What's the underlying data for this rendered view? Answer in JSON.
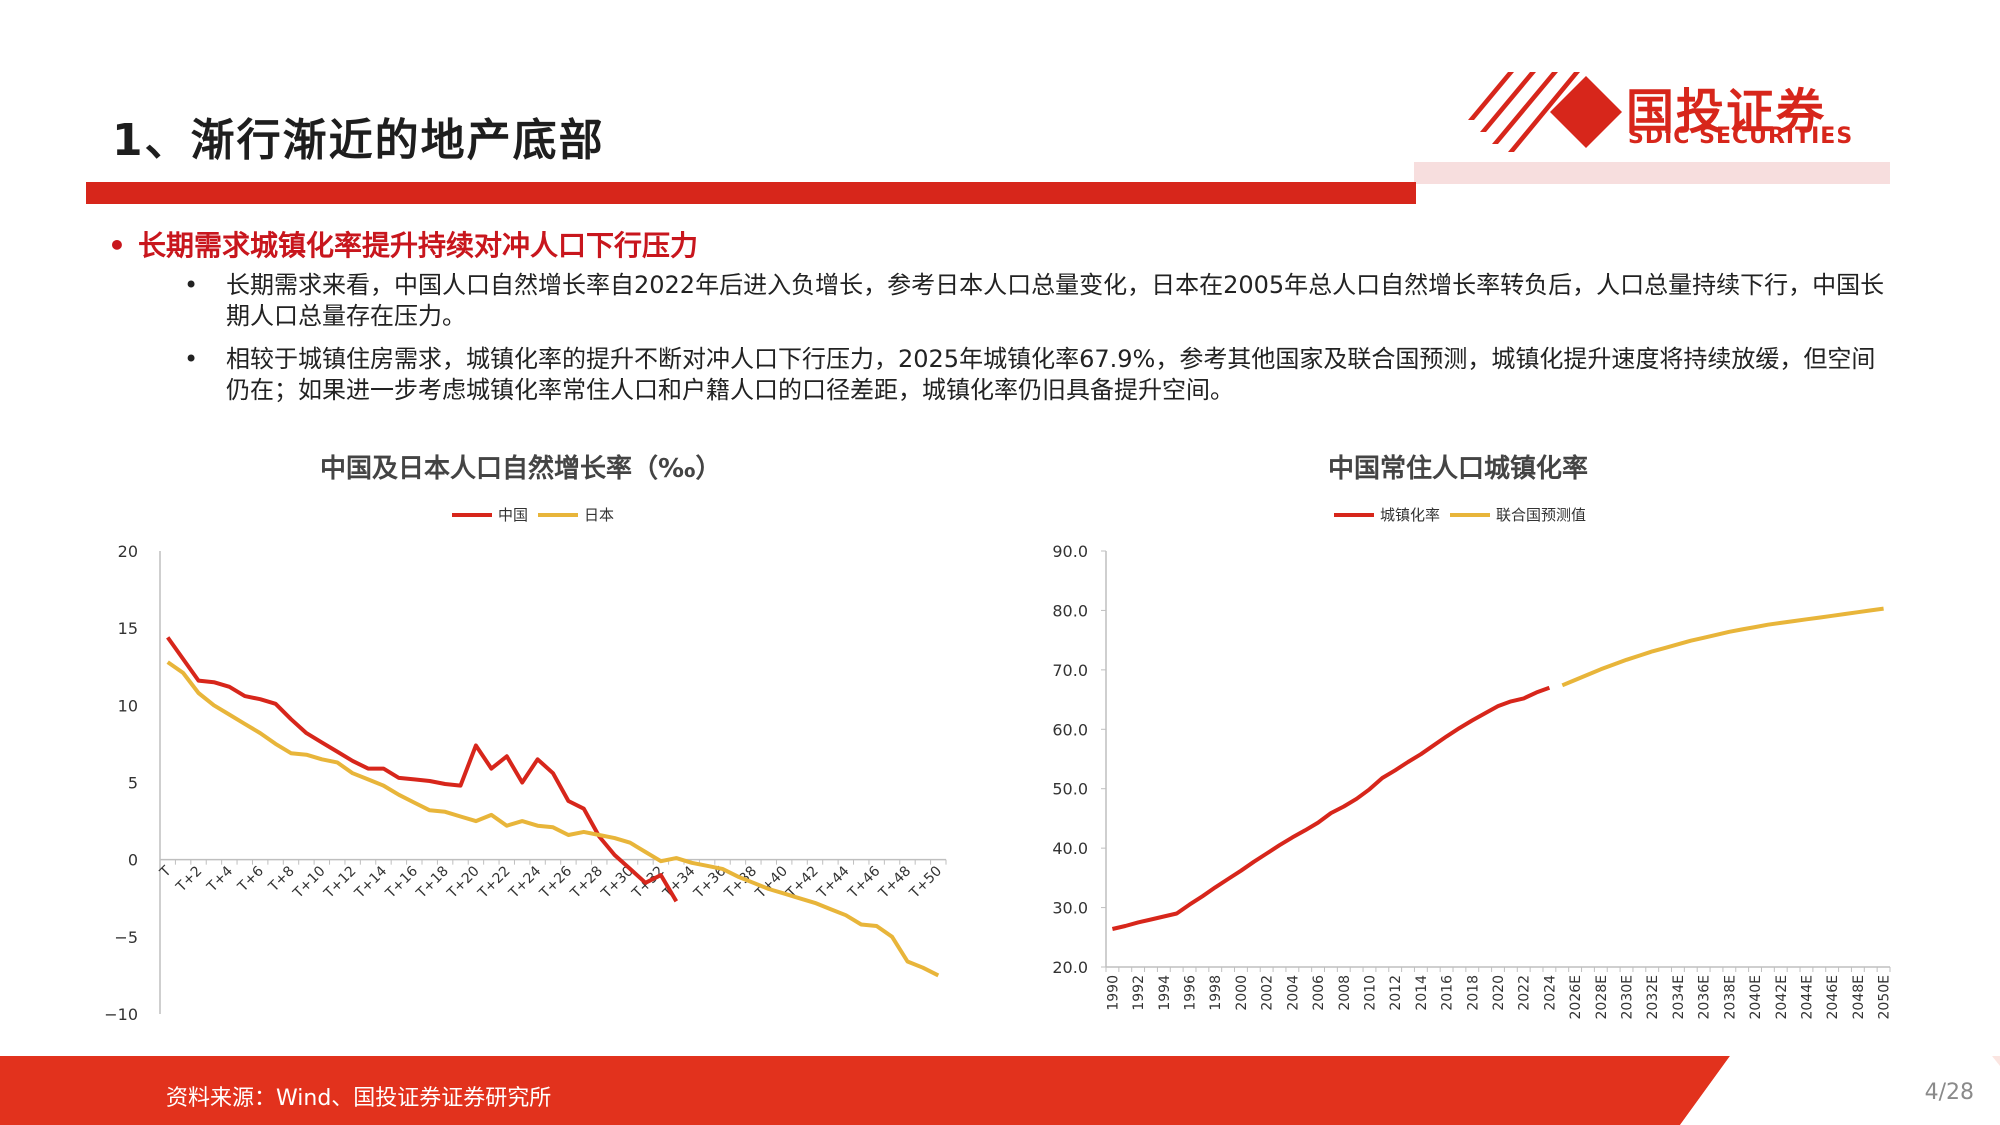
{
  "header": {
    "title": "1、渐行渐近的地产底部",
    "logo_cn": "国投证券",
    "logo_en": "SDIC SECURITIES"
  },
  "section_heading": "长期需求城镇化率提升持续对冲人口下行压力",
  "bullets": [
    "长期需求来看，中国人口自然增长率自2022年后进入负增长，参考日本人口总量变化，日本在2005年总人口自然增长率转负后，人口总量持续下行，中国长期人口总量存在压力。",
    "相较于城镇住房需求，城镇化率的提升不断对冲人口下行压力，2025年城镇化率67.9%，参考其他国家及联合国预测，城镇化提升速度将持续放缓，但空间仍在；如果进一步考虑城镇化率常住人口和户籍人口的口径差距，城镇化率仍旧具备提升空间。"
  ],
  "chart_data": [
    {
      "type": "line",
      "title": "中国及日本人口自然增长率（‰）",
      "ylim": [
        -10,
        20
      ],
      "yticks": [
        "20",
        "15",
        "10",
        "5",
        "0",
        "−5",
        "−10"
      ],
      "xtick_labels": [
        "T",
        "T+2",
        "T+4",
        "T+6",
        "T+8",
        "T+10",
        "T+12",
        "T+14",
        "T+16",
        "T+18",
        "T+20",
        "T+22",
        "T+24",
        "T+26",
        "T+28",
        "T+30",
        "T+32",
        "T+34",
        "T+36",
        "T+38",
        "T+40",
        "T+42",
        "T+44",
        "T+46",
        "T+48",
        "T+50"
      ],
      "legend_position": "top",
      "series": [
        {
          "name": "中国",
          "color": "#d7261b",
          "values": [
            14.4,
            13.0,
            11.6,
            11.5,
            11.2,
            10.6,
            10.4,
            10.1,
            9.1,
            8.2,
            7.6,
            7.0,
            6.4,
            5.9,
            5.9,
            5.3,
            5.2,
            5.1,
            4.9,
            4.8,
            7.4,
            5.9,
            6.7,
            5.0,
            6.5,
            5.6,
            3.8,
            3.3,
            1.5,
            0.3,
            -0.6,
            -1.5,
            -1.0,
            -2.7
          ]
        },
        {
          "name": "日本",
          "color": "#e8b53a",
          "values": [
            12.8,
            12.1,
            10.8,
            10.0,
            9.4,
            8.8,
            8.2,
            7.5,
            6.9,
            6.8,
            6.5,
            6.3,
            5.6,
            5.2,
            4.8,
            4.2,
            3.7,
            3.2,
            3.1,
            2.8,
            2.5,
            2.9,
            2.2,
            2.5,
            2.2,
            2.1,
            1.6,
            1.8,
            1.6,
            1.4,
            1.1,
            0.5,
            -0.1,
            0.1,
            -0.2,
            -0.4,
            -0.6,
            -1.1,
            -1.5,
            -1.9,
            -2.2,
            -2.5,
            -2.8,
            -3.2,
            -3.6,
            -4.2,
            -4.3,
            -5.0,
            -6.6,
            -7.0,
            -7.5
          ]
        }
      ]
    },
    {
      "type": "line",
      "title": "中国常住人口城镇化率",
      "ylim": [
        20,
        90
      ],
      "yticks": [
        "90.0",
        "80.0",
        "70.0",
        "60.0",
        "50.0",
        "40.0",
        "30.0",
        "20.0"
      ],
      "legend_position": "top",
      "xtick_labels": [
        "1990",
        "1992",
        "1994",
        "1996",
        "1998",
        "2000",
        "2002",
        "2004",
        "2006",
        "2008",
        "2010",
        "2012",
        "2014",
        "2016",
        "2018",
        "2020",
        "2022",
        "2024",
        "2026E",
        "2028E",
        "2030E",
        "2032E",
        "2034E",
        "2036E",
        "2038E",
        "2040E",
        "2042E",
        "2044E",
        "2046E",
        "2048E",
        "2050E"
      ],
      "series": [
        {
          "name": "城镇化率",
          "color": "#d7261b",
          "x": [
            1990,
            1991,
            1992,
            1993,
            1994,
            1995,
            1996,
            1997,
            1998,
            1999,
            2000,
            2001,
            2002,
            2003,
            2004,
            2005,
            2006,
            2007,
            2008,
            2009,
            2010,
            2011,
            2012,
            2013,
            2014,
            2015,
            2016,
            2017,
            2018,
            2019,
            2020,
            2021,
            2022,
            2023,
            2024
          ],
          "values": [
            26.4,
            26.9,
            27.5,
            28.0,
            28.5,
            29.0,
            30.5,
            31.9,
            33.4,
            34.8,
            36.2,
            37.7,
            39.1,
            40.5,
            41.8,
            43.0,
            44.3,
            45.9,
            47.0,
            48.3,
            49.9,
            51.8,
            53.1,
            54.5,
            55.8,
            57.3,
            58.8,
            60.2,
            61.5,
            62.7,
            63.9,
            64.7,
            65.2,
            66.2,
            67.0
          ]
        },
        {
          "name": "联合国预测值",
          "color": "#e8b53a",
          "x": [
            2025,
            2026,
            2027,
            2028,
            2029,
            2030,
            2031,
            2032,
            2033,
            2034,
            2035,
            2036,
            2037,
            2038,
            2039,
            2040,
            2041,
            2042,
            2043,
            2044,
            2045,
            2046,
            2047,
            2048,
            2049,
            2050
          ],
          "values": [
            67.4,
            68.3,
            69.2,
            70.1,
            70.9,
            71.7,
            72.4,
            73.1,
            73.7,
            74.3,
            74.9,
            75.4,
            75.9,
            76.4,
            76.8,
            77.2,
            77.6,
            77.9,
            78.2,
            78.5,
            78.8,
            79.1,
            79.4,
            79.7,
            80.0,
            80.3
          ]
        }
      ]
    }
  ],
  "footer": {
    "source": "资料来源：Wind、国投证券证券研究所",
    "page": "4/28"
  },
  "colors": {
    "brand_red": "#d7261b",
    "gold": "#e8b53a"
  }
}
